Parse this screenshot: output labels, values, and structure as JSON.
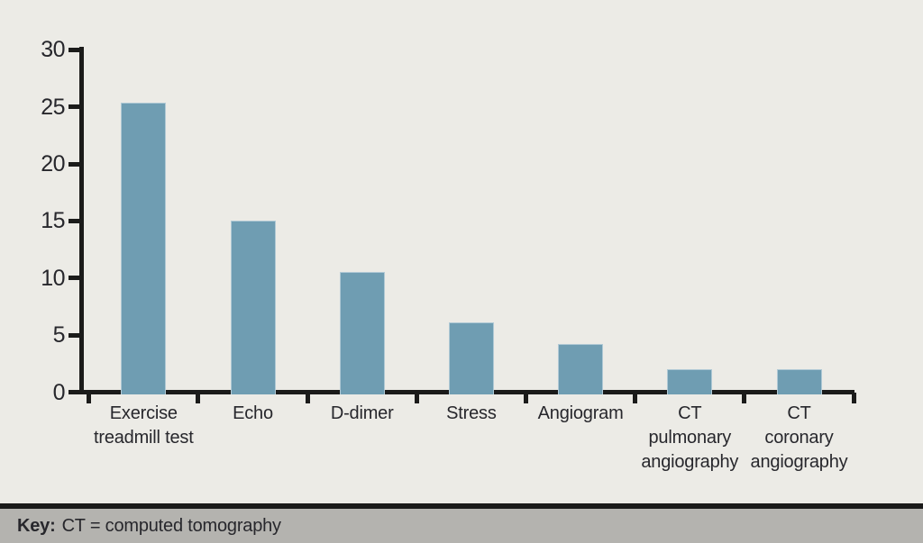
{
  "chart_data": {
    "type": "bar",
    "title": "",
    "xlabel": "",
    "ylabel": "",
    "categories": [
      "Exercise treadmill test",
      "Echo",
      "D-dimer",
      "Stress",
      "Angiogram",
      "CT pulmonary angiography",
      "CT coronary angiography"
    ],
    "category_label_lines": [
      [
        "Exercise",
        "treadmill test"
      ],
      [
        "Echo"
      ],
      [
        "D-dimer"
      ],
      [
        "Stress"
      ],
      [
        "Angiogram"
      ],
      [
        "CT",
        "pulmonary",
        "angiography"
      ],
      [
        "CT",
        "coronary",
        "angiography"
      ]
    ],
    "values": [
      25.4,
      15.0,
      10.5,
      6.1,
      4.2,
      2.0,
      2.0
    ],
    "ylim": [
      0,
      30
    ],
    "yticks": [
      0,
      5,
      10,
      15,
      20,
      25,
      30
    ],
    "grid": false,
    "legend_position": "none",
    "bar_color": "#6f9db2",
    "axis_color": "#1b1b1a",
    "text_color": "#27272c",
    "background_color": "#ecebe6"
  },
  "footer": {
    "key_label": "Key:",
    "key_text": "CT = computed tomography",
    "band_color": "#b4b3af",
    "divider_color": "#1b1b1a"
  }
}
